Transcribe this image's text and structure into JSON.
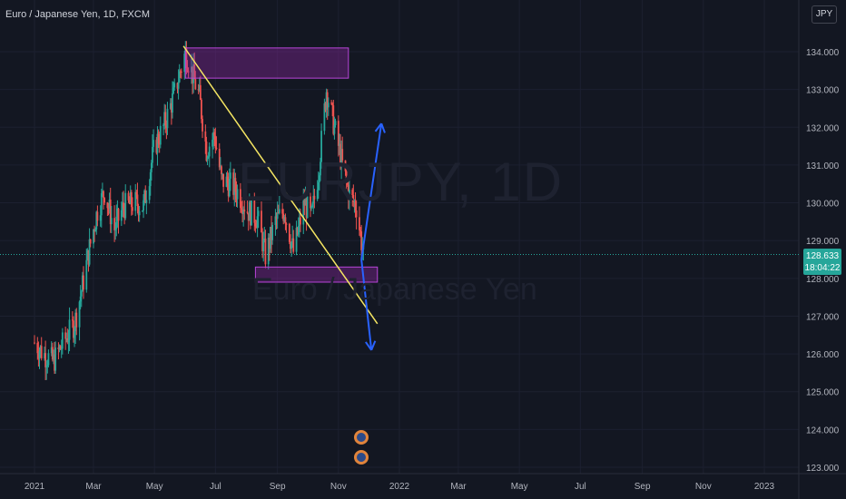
{
  "header": {
    "symbol_title": "Euro / Japanese Yen, 1D, FXCM",
    "currency_badge": "JPY"
  },
  "watermark": {
    "symbol": "EURJPY, 1D",
    "name": "Euro / Japanese Yen"
  },
  "price_tag": {
    "price": "128.633",
    "countdown": "18:04:22"
  },
  "colors": {
    "background": "#131722",
    "up": "#26a69a",
    "down": "#ef5350",
    "trendline": "#f5e663",
    "rectangle": "#9c27b0",
    "arrows": "#2962ff"
  },
  "chart_data": {
    "type": "candlestick",
    "ylim": [
      123,
      135
    ],
    "y_ticks": [
      "123.000",
      "124.000",
      "125.000",
      "126.000",
      "127.000",
      "128.000",
      "129.000",
      "130.000",
      "131.000",
      "132.000",
      "133.000",
      "134.000"
    ],
    "x_ticks": [
      "2021",
      "Mar",
      "May",
      "Jul",
      "Sep",
      "Nov",
      "2022",
      "Mar",
      "May",
      "Jul",
      "Sep",
      "Nov",
      "2023"
    ],
    "current_price": 128.633,
    "price_path": [
      [
        "2021-01-01",
        126.3
      ],
      [
        "2021-01-10",
        126.0
      ],
      [
        "2021-01-20",
        125.8
      ],
      [
        "2021-02-01",
        126.4
      ],
      [
        "2021-02-10",
        126.8
      ],
      [
        "2021-02-18",
        127.8
      ],
      [
        "2021-02-25",
        128.8
      ],
      [
        "2021-03-05",
        129.8
      ],
      [
        "2021-03-12",
        130.3
      ],
      [
        "2021-03-22",
        129.3
      ],
      [
        "2021-03-31",
        129.9
      ],
      [
        "2021-04-12",
        130.0
      ],
      [
        "2021-04-20",
        129.9
      ],
      [
        "2021-05-01",
        131.5
      ],
      [
        "2021-05-10",
        132.0
      ],
      [
        "2021-05-20",
        132.8
      ],
      [
        "2021-05-28",
        133.6
      ],
      [
        "2021-06-01",
        134.0
      ],
      [
        "2021-06-08",
        133.4
      ],
      [
        "2021-06-15",
        132.8
      ],
      [
        "2021-06-22",
        131.4
      ],
      [
        "2021-06-30",
        131.8
      ],
      [
        "2021-07-07",
        130.6
      ],
      [
        "2021-07-15",
        130.5
      ],
      [
        "2021-07-23",
        130.3
      ],
      [
        "2021-08-02",
        129.8
      ],
      [
        "2021-08-12",
        129.6
      ],
      [
        "2021-08-20",
        128.6
      ],
      [
        "2021-08-30",
        129.5
      ],
      [
        "2021-09-08",
        129.8
      ],
      [
        "2021-09-17",
        128.7
      ],
      [
        "2021-09-28",
        130.0
      ],
      [
        "2021-10-05",
        129.6
      ],
      [
        "2021-10-12",
        130.8
      ],
      [
        "2021-10-20",
        133.0
      ],
      [
        "2021-10-28",
        132.0
      ],
      [
        "2021-11-05",
        131.0
      ],
      [
        "2021-11-12",
        130.2
      ],
      [
        "2021-11-19",
        129.9
      ],
      [
        "2021-11-26",
        128.6
      ]
    ],
    "drawings": {
      "trendline": [
        [
          "2021-05-30",
          134.15
        ],
        [
          "2021-12-10",
          126.8
        ]
      ],
      "resistance_zone": {
        "x": [
          "2021-06-01",
          "2021-11-11"
        ],
        "y": [
          133.3,
          134.1
        ]
      },
      "support_zone": {
        "x": [
          "2021-08-10",
          "2021-12-10"
        ],
        "y": [
          127.9,
          128.3
        ]
      },
      "arrow_up": [
        [
          "2021-11-24",
          128.5
        ],
        [
          "2021-12-14",
          132.1
        ]
      ],
      "arrow_down": [
        [
          "2021-11-24",
          128.5
        ],
        [
          "2021-12-04",
          126.1
        ]
      ]
    }
  }
}
